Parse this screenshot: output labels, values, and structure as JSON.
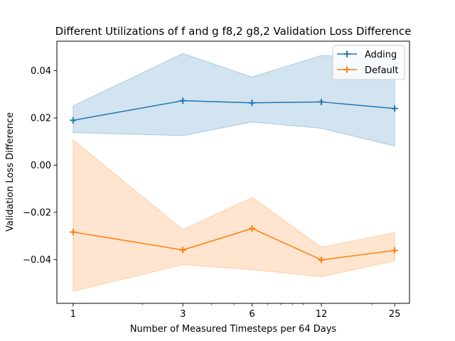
{
  "chart_data": {
    "type": "line",
    "title": "Different Utilizations of f and g f8,2 g8,2 Validation Loss Difference",
    "xlabel": "Number of Measured Timesteps per 64 Days",
    "ylabel": "Validation Loss Difference",
    "x_scale": "log",
    "x": [
      1,
      3,
      6,
      12,
      25
    ],
    "x_tick_labels": [
      "1",
      "3",
      "6",
      "12",
      "25"
    ],
    "xlim": [
      0.85,
      29
    ],
    "ylim": [
      -0.0585,
      0.0525
    ],
    "y_ticks": [
      0.04,
      0.02,
      0.0,
      -0.02,
      -0.04
    ],
    "y_tick_labels": [
      "0.04",
      "0.02",
      "0.00",
      "−0.02",
      "−0.04"
    ],
    "grid": false,
    "legend_position": "top-right",
    "series": [
      {
        "name": "Adding",
        "color": "#1f77b4",
        "marker": "plus",
        "values": [
          0.019,
          0.0273,
          0.0264,
          0.0268,
          0.024
        ],
        "band_lower": [
          0.0138,
          0.0125,
          0.0183,
          0.0156,
          0.0081
        ],
        "band_upper": [
          0.0251,
          0.0473,
          0.0373,
          0.0465,
          0.0449
        ]
      },
      {
        "name": "Default",
        "color": "#ff7f0e",
        "marker": "plus",
        "values": [
          -0.0283,
          -0.0359,
          -0.0268,
          -0.0401,
          -0.0361
        ],
        "band_lower": [
          -0.0534,
          -0.0421,
          -0.0442,
          -0.0472,
          -0.0405
        ],
        "band_upper": [
          0.0107,
          -0.0273,
          -0.0137,
          -0.0347,
          -0.0286
        ]
      }
    ]
  }
}
